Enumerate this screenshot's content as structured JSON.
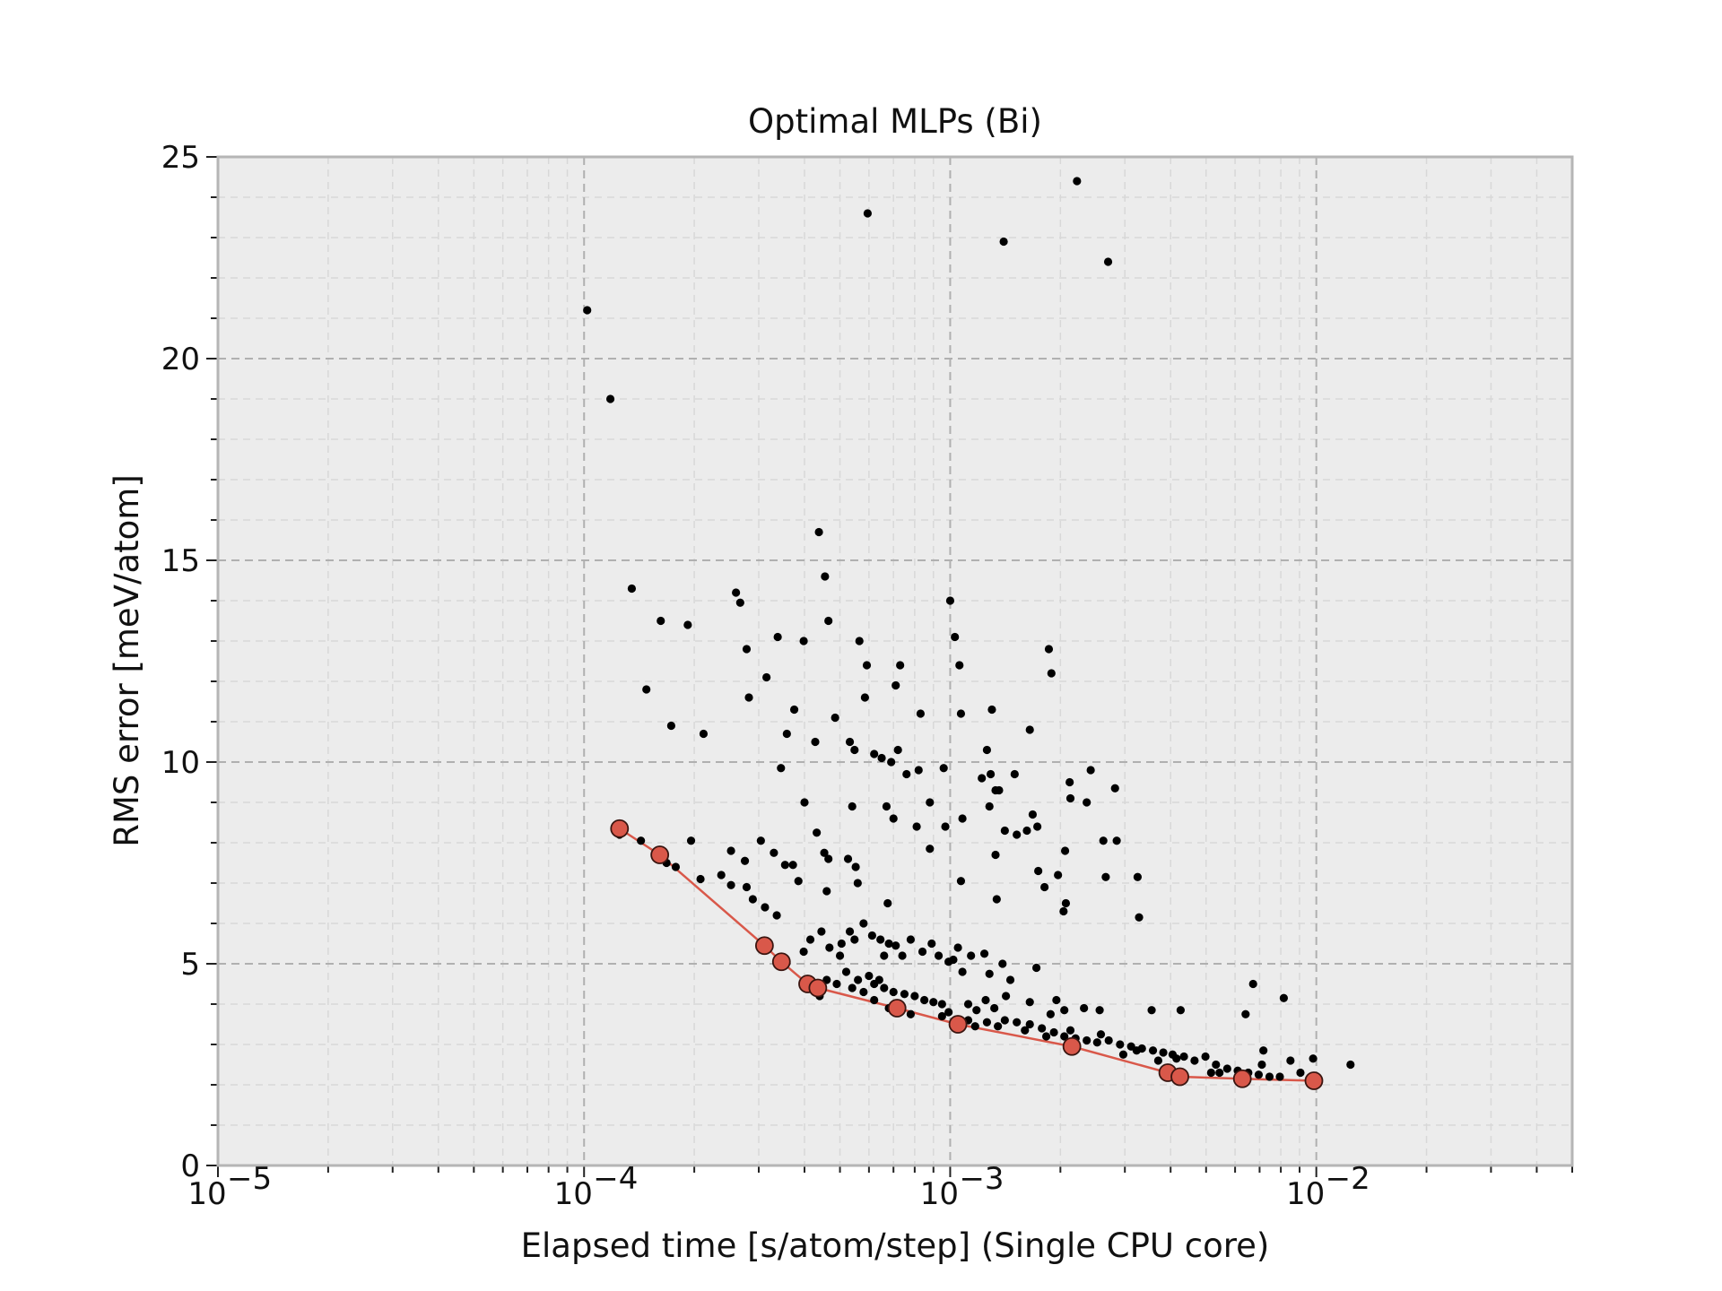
{
  "chart_data": {
    "type": "scatter",
    "title": "Optimal MLPs (Bi)",
    "xlabel": "Elapsed time [s/atom/step] (Single CPU core)",
    "ylabel": "RMS error [meV/atom]",
    "xscale": "log",
    "xlim": [
      1e-05,
      0.05
    ],
    "ylim": [
      0,
      25
    ],
    "x_ticks": [
      {
        "value": 1e-05,
        "base": "10",
        "exp": "−5"
      },
      {
        "value": 0.0001,
        "base": "10",
        "exp": "−4"
      },
      {
        "value": 0.001,
        "base": "10",
        "exp": "−3"
      },
      {
        "value": 0.01,
        "base": "10",
        "exp": "−2"
      }
    ],
    "y_ticks": [
      "0",
      "5",
      "10",
      "15",
      "20",
      "25"
    ],
    "grid": true,
    "colors": {
      "background": "#ececec",
      "points": "#000000",
      "pareto": "#d9584a",
      "grid": "#b0b0b0"
    },
    "series": [
      {
        "kind": "scatter",
        "points": [
          [
            0.000102,
            21.2
          ],
          [
            0.000118,
            19.0
          ],
          [
            0.000595,
            23.6
          ],
          [
            0.0014,
            22.9
          ],
          [
            0.00222,
            24.4
          ],
          [
            0.0027,
            22.4
          ],
          [
            0.000135,
            14.3
          ],
          [
            0.000148,
            11.8
          ],
          [
            0.000162,
            13.5
          ],
          [
            0.000173,
            10.9
          ],
          [
            0.000192,
            13.4
          ],
          [
            0.000212,
            10.7
          ],
          [
            0.00026,
            14.2
          ],
          [
            0.000267,
            13.95
          ],
          [
            0.000278,
            12.8
          ],
          [
            0.000282,
            11.6
          ],
          [
            0.000315,
            12.1
          ],
          [
            0.000338,
            13.1
          ],
          [
            0.000358,
            10.7
          ],
          [
            0.000375,
            11.3
          ],
          [
            0.000398,
            13.0
          ],
          [
            0.000345,
            9.85
          ],
          [
            0.000438,
            15.7
          ],
          [
            0.000455,
            14.6
          ],
          [
            0.000465,
            13.5
          ],
          [
            0.000485,
            11.1
          ],
          [
            0.000428,
            10.5
          ],
          [
            0.000532,
            10.5
          ],
          [
            0.000565,
            13.0
          ],
          [
            0.000592,
            12.4
          ],
          [
            0.000585,
            11.6
          ],
          [
            0.000548,
            10.3
          ],
          [
            0.00062,
            10.2
          ],
          [
            0.00065,
            10.1
          ],
          [
            0.00069,
            10.0
          ],
          [
            0.00072,
            10.3
          ],
          [
            0.00073,
            12.4
          ],
          [
            0.00071,
            11.9
          ],
          [
            0.00076,
            9.7
          ],
          [
            0.00083,
            11.2
          ],
          [
            0.00082,
            9.8
          ],
          [
            0.00088,
            9.0
          ],
          [
            0.00096,
            9.85
          ],
          [
            0.001,
            14.0
          ],
          [
            0.00103,
            13.1
          ],
          [
            0.00106,
            12.4
          ],
          [
            0.00107,
            11.2
          ],
          [
            0.0013,
            11.3
          ],
          [
            0.00126,
            10.3
          ],
          [
            0.00165,
            10.8
          ],
          [
            0.00186,
            12.8
          ],
          [
            0.00189,
            12.2
          ],
          [
            0.00122,
            9.6
          ],
          [
            0.00133,
            9.3
          ],
          [
            0.00136,
            9.3
          ],
          [
            0.00129,
            9.7
          ],
          [
            0.0015,
            9.7
          ],
          [
            0.00212,
            9.5
          ],
          [
            0.00242,
            9.8
          ],
          [
            0.00213,
            9.1
          ],
          [
            0.00236,
            9.0
          ],
          [
            0.00282,
            9.35
          ],
          [
            0.00168,
            8.7
          ],
          [
            0.00173,
            8.4
          ],
          [
            0.00128,
            8.9
          ],
          [
            0.00108,
            8.6
          ],
          [
            0.00097,
            8.4
          ],
          [
            0.00081,
            8.4
          ],
          [
            0.00067,
            8.9
          ],
          [
            0.0007,
            8.6
          ],
          [
            0.00054,
            8.9
          ],
          [
            0.0004,
            9.0
          ],
          [
            0.000125,
            8.2
          ],
          [
            0.000143,
            8.05
          ],
          [
            0.000168,
            7.5
          ],
          [
            0.000178,
            7.4
          ],
          [
            0.000196,
            8.05
          ],
          [
            0.000208,
            7.1
          ],
          [
            0.000237,
            7.2
          ],
          [
            0.000252,
            7.8
          ],
          [
            0.000275,
            7.55
          ],
          [
            0.000252,
            6.95
          ],
          [
            0.000278,
            6.9
          ],
          [
            0.000304,
            8.05
          ],
          [
            0.00033,
            7.75
          ],
          [
            0.000354,
            7.45
          ],
          [
            0.000372,
            7.45
          ],
          [
            0.000385,
            7.05
          ],
          [
            0.000432,
            8.25
          ],
          [
            0.000453,
            7.75
          ],
          [
            0.000465,
            7.6
          ],
          [
            0.000526,
            7.6
          ],
          [
            0.000552,
            7.4
          ],
          [
            0.000559,
            7.0
          ],
          [
            0.00046,
            6.8
          ],
          [
            0.000289,
            6.6
          ],
          [
            0.000312,
            6.4
          ],
          [
            0.000336,
            6.2
          ],
          [
            0.000675,
            6.5
          ],
          [
            0.00088,
            7.85
          ],
          [
            0.00107,
            7.05
          ],
          [
            0.00133,
            7.7
          ],
          [
            0.00152,
            8.2
          ],
          [
            0.00141,
            8.3
          ],
          [
            0.00162,
            8.3
          ],
          [
            0.00134,
            6.6
          ],
          [
            0.00174,
            7.3
          ],
          [
            0.00181,
            6.9
          ],
          [
            0.00197,
            7.2
          ],
          [
            0.00206,
            7.8
          ],
          [
            0.00204,
            6.3
          ],
          [
            0.00207,
            6.5
          ],
          [
            0.00262,
            8.05
          ],
          [
            0.00285,
            8.05
          ],
          [
            0.00266,
            7.15
          ],
          [
            0.00325,
            7.15
          ],
          [
            0.00328,
            6.15
          ],
          [
            0.000398,
            5.3
          ],
          [
            0.000415,
            5.6
          ],
          [
            0.000445,
            5.8
          ],
          [
            0.000468,
            5.4
          ],
          [
            0.000505,
            5.5
          ],
          [
            0.000532,
            5.8
          ],
          [
            0.000548,
            5.6
          ],
          [
            0.00058,
            6.0
          ],
          [
            0.000612,
            5.7
          ],
          [
            0.000645,
            5.6
          ],
          [
            0.00068,
            5.5
          ],
          [
            0.00074,
            5.2
          ],
          [
            0.00078,
            5.6
          ],
          [
            0.00084,
            5.3
          ],
          [
            0.00089,
            5.5
          ],
          [
            0.00093,
            5.2
          ],
          [
            0.00102,
            5.1
          ],
          [
            0.00108,
            4.8
          ],
          [
            0.00124,
            5.25
          ],
          [
            0.00139,
            5.0
          ],
          [
            0.00172,
            4.9
          ],
          [
            0.00105,
            5.4
          ],
          [
            0.00052,
            4.8
          ],
          [
            0.00056,
            4.6
          ],
          [
            0.0006,
            4.7
          ],
          [
            0.00062,
            4.5
          ],
          [
            0.00064,
            4.6
          ],
          [
            0.00066,
            4.4
          ],
          [
            0.0007,
            4.3
          ],
          [
            0.00075,
            4.25
          ],
          [
            0.0008,
            4.2
          ],
          [
            0.00085,
            4.1
          ],
          [
            0.0009,
            4.05
          ],
          [
            0.00095,
            4.0
          ],
          [
            0.00099,
            3.8
          ],
          [
            0.00112,
            4.0
          ],
          [
            0.00118,
            3.85
          ],
          [
            0.00125,
            4.1
          ],
          [
            0.00132,
            3.9
          ],
          [
            0.00141,
            3.6
          ],
          [
            0.00152,
            3.55
          ],
          [
            0.00165,
            3.5
          ],
          [
            0.00178,
            3.4
          ],
          [
            0.00192,
            3.3
          ],
          [
            0.00205,
            3.2
          ],
          [
            0.0022,
            3.15
          ],
          [
            0.00236,
            3.1
          ],
          [
            0.00252,
            3.05
          ],
          [
            0.00271,
            3.1
          ],
          [
            0.00291,
            3.0
          ],
          [
            0.00312,
            2.95
          ],
          [
            0.00334,
            2.9
          ],
          [
            0.00358,
            2.85
          ],
          [
            0.00382,
            2.8
          ],
          [
            0.00405,
            2.75
          ],
          [
            0.00435,
            2.7
          ],
          [
            0.00465,
            2.6
          ],
          [
            0.00498,
            2.7
          ],
          [
            0.00532,
            2.5
          ],
          [
            0.00571,
            2.4
          ],
          [
            0.0061,
            2.35
          ],
          [
            0.00652,
            2.3
          ],
          [
            0.00696,
            2.25
          ],
          [
            0.00745,
            2.2
          ],
          [
            0.00795,
            2.2
          ],
          [
            0.0085,
            2.6
          ],
          [
            0.00905,
            2.3
          ],
          [
            0.0098,
            2.65
          ],
          [
            0.0124,
            2.5
          ],
          [
            0.00672,
            4.5
          ],
          [
            0.00641,
            3.75
          ],
          [
            0.00815,
            4.15
          ],
          [
            0.00426,
            3.85
          ],
          [
            0.00355,
            3.85
          ],
          [
            0.00256,
            3.85
          ],
          [
            0.00717,
            2.85
          ],
          [
            0.0071,
            2.5
          ],
          [
            0.00544,
            2.3
          ],
          [
            0.00516,
            2.3
          ],
          [
            0.00195,
            4.1
          ],
          [
            0.00205,
            3.85
          ],
          [
            0.00232,
            3.9
          ],
          [
            0.00142,
            4.2
          ],
          [
            0.00165,
            4.05
          ],
          [
            0.00188,
            3.75
          ],
          [
            0.00112,
            3.6
          ],
          [
            0.00126,
            3.55
          ],
          [
            0.00095,
            3.7
          ],
          [
            0.00078,
            3.75
          ],
          [
            0.00068,
            3.9
          ],
          [
            0.00062,
            4.1
          ],
          [
            0.00058,
            4.3
          ],
          [
            0.00054,
            4.4
          ],
          [
            0.00049,
            4.5
          ],
          [
            0.00046,
            4.6
          ],
          [
            0.00044,
            4.2
          ],
          [
            0.0005,
            5.2
          ],
          [
            0.00066,
            5.2
          ],
          [
            0.00071,
            5.45
          ],
          [
            0.00099,
            5.05
          ],
          [
            0.00114,
            5.2
          ],
          [
            0.00128,
            4.75
          ],
          [
            0.00146,
            4.6
          ],
          [
            0.00117,
            3.45
          ],
          [
            0.00135,
            3.45
          ],
          [
            0.0016,
            3.35
          ],
          [
            0.00183,
            3.2
          ],
          [
            0.00213,
            3.35
          ],
          [
            0.00258,
            3.25
          ],
          [
            0.00297,
            2.75
          ],
          [
            0.00323,
            2.85
          ],
          [
            0.0037,
            2.6
          ],
          [
            0.00415,
            2.65
          ]
        ]
      },
      {
        "kind": "pareto",
        "points": [
          [
            0.000125,
            8.35
          ],
          [
            0.000161,
            7.7
          ],
          [
            0.000311,
            5.45
          ],
          [
            0.000346,
            5.05
          ],
          [
            0.000408,
            4.5
          ],
          [
            0.000435,
            4.4
          ],
          [
            0.000716,
            3.9
          ],
          [
            0.00105,
            3.5
          ],
          [
            0.00215,
            2.95
          ],
          [
            0.00393,
            2.3
          ],
          [
            0.00424,
            2.2
          ],
          [
            0.00628,
            2.15
          ],
          [
            0.00985,
            2.1
          ]
        ]
      }
    ]
  }
}
